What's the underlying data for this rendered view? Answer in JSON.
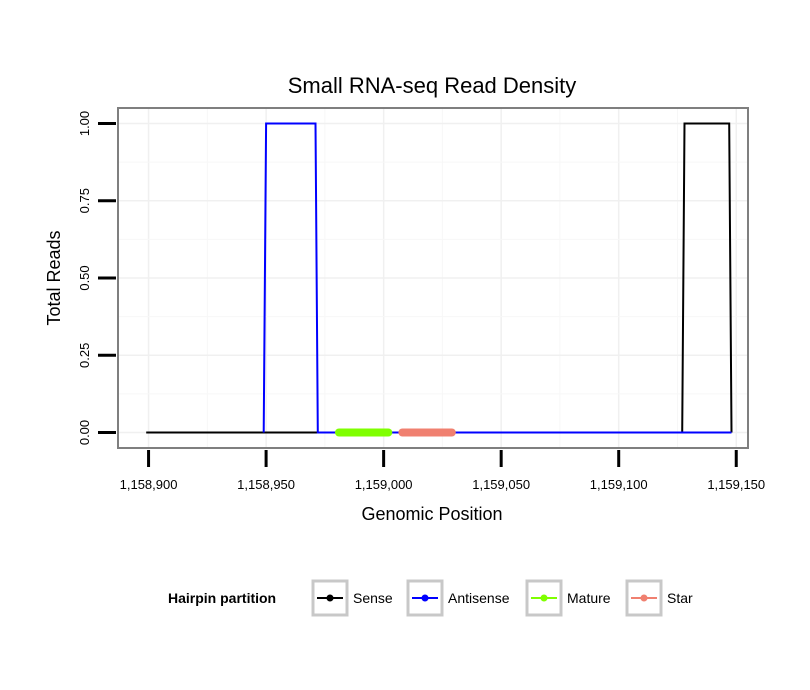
{
  "chart_data": {
    "type": "line",
    "title": "Small RNA-seq Read Density",
    "xlabel": "Genomic Position",
    "ylabel": "Total Reads",
    "xlim": [
      1158887,
      1159155
    ],
    "ylim": [
      -0.05,
      1.05
    ],
    "x_ticks": [
      1158900,
      1158950,
      1159000,
      1159050,
      1159100,
      1159150
    ],
    "x_tick_labels": [
      "1,158,900",
      "1,158,950",
      "1,159,000",
      "1,159,050",
      "1,159,100",
      "1,159,150"
    ],
    "y_ticks": [
      0,
      0.25,
      0.5,
      0.75,
      1
    ],
    "y_tick_labels": [
      "0.00",
      "0.25",
      "0.50",
      "0.75",
      "1.00"
    ],
    "grid": true,
    "legend_position": "bottom",
    "legend": {
      "title": "Hairpin partition",
      "entries": [
        {
          "name": "Sense",
          "color": "#000000"
        },
        {
          "name": "Antisense",
          "color": "#0000ff"
        },
        {
          "name": "Mature",
          "color": "#7fff00"
        },
        {
          "name": "Star",
          "color": "#f08070"
        }
      ]
    },
    "series": [
      {
        "name": "Sense",
        "color": "#000000",
        "x": [
          1158899,
          1159127,
          1159128,
          1159147,
          1159148
        ],
        "y": [
          0,
          0,
          1,
          1,
          0
        ]
      },
      {
        "name": "Antisense",
        "color": "#0000ff",
        "x": [
          1158949,
          1158950,
          1158971,
          1158972,
          1159127,
          1159148
        ],
        "y": [
          0,
          1,
          1,
          0,
          0,
          0
        ]
      },
      {
        "name": "Mature",
        "color": "#7fff00",
        "x": [
          1158981,
          1159002
        ],
        "y": [
          0,
          0
        ]
      },
      {
        "name": "Star",
        "color": "#f08070",
        "x": [
          1159008,
          1159029
        ],
        "y": [
          0,
          0
        ]
      }
    ]
  }
}
